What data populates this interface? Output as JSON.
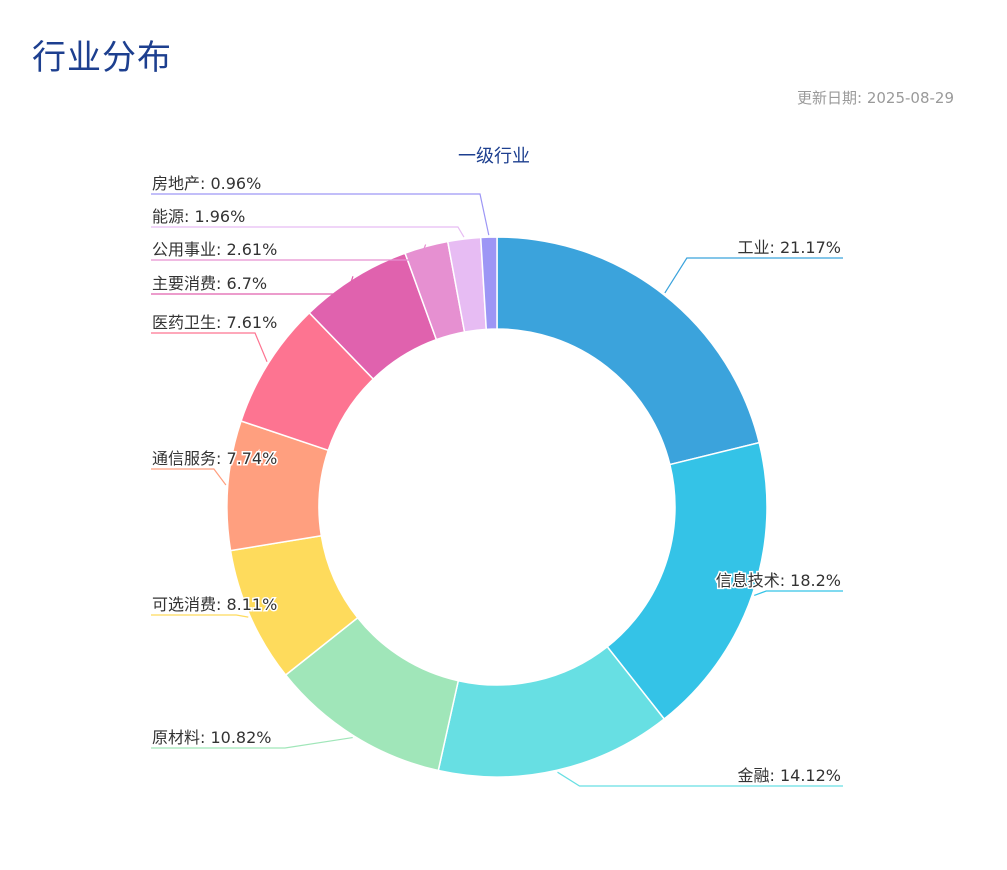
{
  "page": {
    "title": "行业分布",
    "update_label": "更新日期:",
    "update_date": "2025-08-29"
  },
  "chart_data": {
    "type": "pie",
    "variant": "donut",
    "title": "一级行业",
    "label_separator": ": ",
    "categories": [
      "工业",
      "信息技术",
      "金融",
      "原材料",
      "可选消费",
      "通信服务",
      "医药卫生",
      "主要消费",
      "公用事业",
      "能源",
      "房地产"
    ],
    "values": [
      21.17,
      18.2,
      14.12,
      10.82,
      8.11,
      7.74,
      7.61,
      6.7,
      2.61,
      1.96,
      0.96
    ],
    "value_labels": [
      "21.17%",
      "18.2%",
      "14.12%",
      "10.82%",
      "8.11%",
      "7.74%",
      "7.61%",
      "6.7%",
      "2.61%",
      "1.96%",
      "0.96%"
    ],
    "colors": [
      "#3ba3dc",
      "#34c3e7",
      "#67dfe3",
      "#a0e6b9",
      "#fedb5c",
      "#ff9f7f",
      "#fd7491",
      "#e062ae",
      "#e690d1",
      "#e7bcf3",
      "#9d96f5"
    ],
    "legend": "none"
  }
}
